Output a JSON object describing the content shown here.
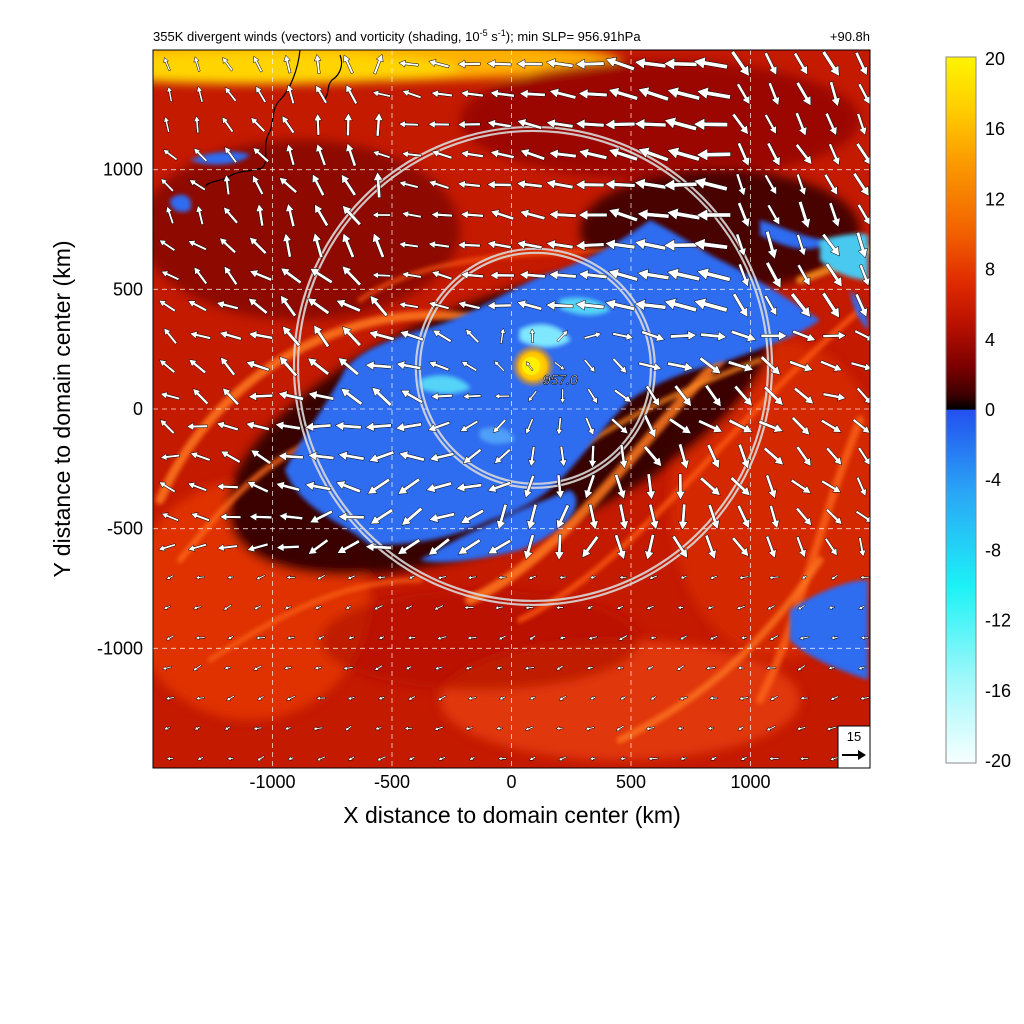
{
  "chart_data": {
    "type": "heatmap",
    "title_left": "355K divergent winds (vectors) and vorticity (shading, 10",
    "title_exp1": "-5",
    "title_mid": " s",
    "title_exp2": "-1",
    "title_end": "); min SLP= 956.91hPa",
    "title_right": "+90.8h",
    "xlabel": "X distance to domain center (km)",
    "ylabel": "Y distance to domain center (km)",
    "xlim": [
      -1500,
      1500
    ],
    "ylim": [
      -1500,
      1500
    ],
    "xticks": [
      -1000,
      -500,
      0,
      500,
      1000
    ],
    "yticks": [
      -1000,
      -500,
      0,
      500,
      1000
    ],
    "xtick_labels": [
      "-1000",
      "-500",
      "0",
      "500",
      "1000"
    ],
    "ytick_labels": [
      "-1000",
      "-500",
      "0",
      "500",
      "1000"
    ],
    "grid": true,
    "center_label": "957.0",
    "center_position": [
      110,
      160
    ],
    "rings": [
      {
        "center": [
          100,
          170
        ],
        "radius": 500
      },
      {
        "center": [
          90,
          180
        ],
        "radius": 1000
      }
    ],
    "reference_vector": {
      "label": "15",
      "value": 15
    },
    "colorbar": {
      "ticks": [
        20,
        16,
        12,
        8,
        4,
        0,
        -4,
        -8,
        -12,
        -16,
        -20
      ],
      "tick_labels": [
        "20",
        "16",
        "12",
        "8",
        "4",
        "0",
        "-4",
        "-8",
        "-12",
        "-16",
        "-20"
      ],
      "range": [
        -20,
        20
      ],
      "colors_positive": [
        "#000000",
        "#3a0000",
        "#7a0000",
        "#b81000",
        "#e02a00",
        "#f26000",
        "#fb9a00",
        "#ffd000",
        "#fff400"
      ],
      "colors_negative": [
        "#2450f0",
        "#2f7df5",
        "#2aa8f6",
        "#21d4f6",
        "#1cf2f6",
        "#7cf6f8",
        "#c6fbfc",
        "#f7ffff"
      ]
    },
    "colors": {
      "background": "#c81e00",
      "cyclonic_band": "#e03a10",
      "anticyclonic": "#2f6cf0",
      "core": "#ffd400"
    }
  }
}
